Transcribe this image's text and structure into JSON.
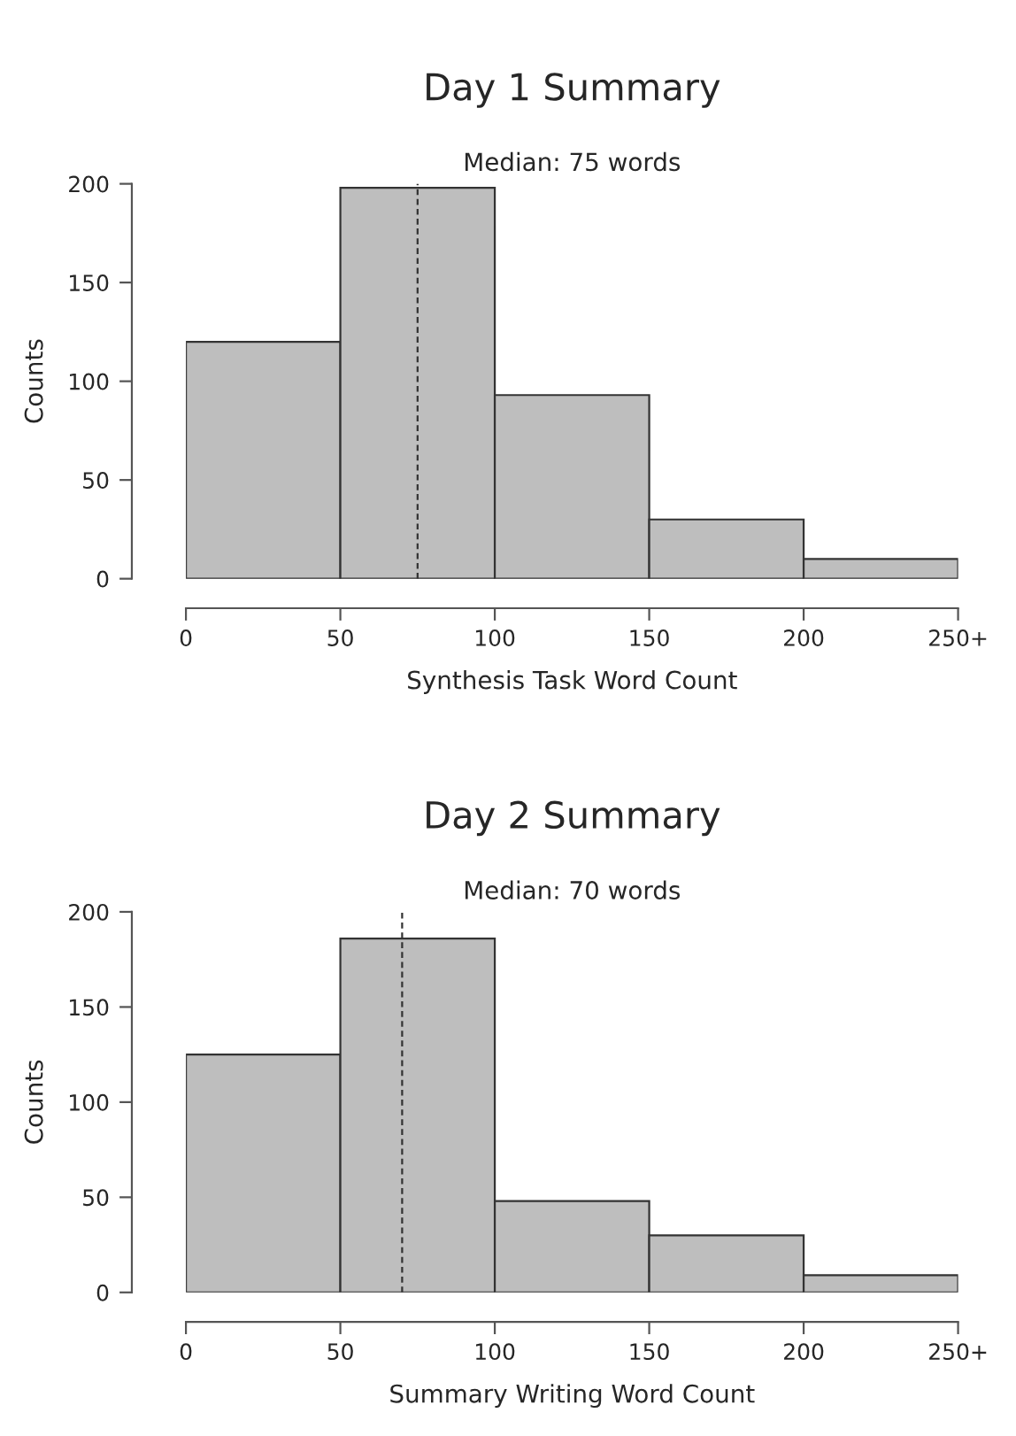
{
  "chart_data": [
    {
      "type": "histogram",
      "title": "Day 1 Summary",
      "xlabel": "Synthesis Task Word Count",
      "ylabel": "Counts",
      "bins": [
        0,
        50,
        100,
        150,
        200,
        250
      ],
      "values": [
        120,
        198,
        93,
        30,
        10
      ],
      "color": "#bebebe",
      "xlim": [
        0,
        250
      ],
      "ylim": [
        0,
        200
      ],
      "xticks": [
        0,
        50,
        100,
        150,
        200,
        {
          "value": 250,
          "label": "250+"
        }
      ],
      "yticks": [
        0,
        50,
        100,
        150,
        200
      ],
      "grid": false,
      "ref_lines": [
        {
          "axis": "x",
          "value": 75,
          "label": "Median: 75 words",
          "line_style": "dashed",
          "color": "#333333"
        }
      ]
    },
    {
      "type": "histogram",
      "title": "Day 2 Summary",
      "xlabel": "Summary Writing Word Count",
      "ylabel": "Counts",
      "bins": [
        0,
        50,
        100,
        150,
        200,
        250
      ],
      "values": [
        125,
        186,
        48,
        30,
        9
      ],
      "color": "#bebebe",
      "xlim": [
        0,
        250
      ],
      "ylim": [
        0,
        200
      ],
      "xticks": [
        0,
        50,
        100,
        150,
        200,
        {
          "value": 250,
          "label": "250+"
        }
      ],
      "yticks": [
        0,
        50,
        100,
        150,
        200
      ],
      "grid": false,
      "ref_lines": [
        {
          "axis": "x",
          "value": 70,
          "label": "Median: 70 words",
          "line_style": "dashed",
          "color": "#333333"
        }
      ]
    }
  ]
}
